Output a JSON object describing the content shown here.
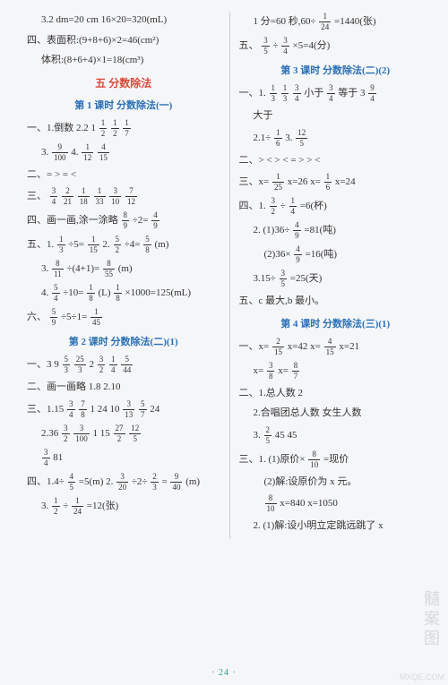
{
  "leftCol": {
    "top1": "3.2 dm=20 cm  16×20=320(mL)",
    "top2": "四、表面积:(9+8+6)×2=46(cm²)",
    "top3": "体积:(8+6+4)×1=18(cm³)",
    "headingRed": "五  分数除法",
    "headingBlue1": "第 1 课时  分数除法(一)",
    "l1a": "一、1.倒数  2.2  1  ",
    "l1b_f1n": "1",
    "l1b_f1d": "2",
    "l1b_f2n": "1",
    "l1b_f2d": "2",
    "l1b_f3n": "1",
    "l1b_f3d": "7",
    "l3a": "3.",
    "l3a_f1n": "9",
    "l3a_f1d": "100",
    "l3b": "  4.",
    "l3b_f1n": "1",
    "l3b_f1d": "12",
    "l3b_f2n": "4",
    "l3b_f2d": "15",
    "l4": "二、=  >  =  <",
    "l5a": "三、",
    "l5_f1n": "3",
    "l5_f1d": "4",
    "l5_f2n": "2",
    "l5_f2d": "21",
    "l5_f3n": "1",
    "l5_f3d": "18",
    "l5_f4n": "1",
    "l5_f4d": "33",
    "l5_f5n": "3",
    "l5_f5d": "10",
    "l5_f6n": "7",
    "l5_f6d": "12",
    "l6a": "四、画一画,涂一涂略  ",
    "l6_f1n": "8",
    "l6_f1d": "9",
    "l6_mid": "÷2=",
    "l6_f2n": "4",
    "l6_f2d": "9",
    "l7a": "五、1.",
    "l7_f1n": "1",
    "l7_f1d": "3",
    "l7_mid": "÷5=",
    "l7_f2n": "1",
    "l7_f2d": "15",
    "l7b": "  2.",
    "l7_f3n": "5",
    "l7_f3d": "2",
    "l7_mid2": "÷4=",
    "l7_f4n": "5",
    "l7_f4d": "8",
    "l7_end": "(m)",
    "l8a": "3.",
    "l8_f1n": "8",
    "l8_f1d": "11",
    "l8_mid": "÷(4+1)=",
    "l8_f2n": "8",
    "l8_f2d": "55",
    "l8_end": "(m)",
    "l9a": "4.",
    "l9_f1n": "5",
    "l9_f1d": "4",
    "l9_m1": "÷10=",
    "l9_f2n": "1",
    "l9_f2d": "8",
    "l9_m2": "(L)  ",
    "l9_f3n": "1",
    "l9_f3d": "8",
    "l9_m3": "×1000=125(mL)",
    "l10a": "六、",
    "l10_f1n": "5",
    "l10_f1d": "9",
    "l10_m": "÷5÷1=",
    "l10_f2n": "1",
    "l10_f2d": "45",
    "headingBlue2": "第 2 课时  分数除法(二)(1)",
    "l11a": "一、3  9  ",
    "l11_f1n": "5",
    "l11_f1d": "3",
    "l11_f2n": "25",
    "l11_f2d": "3",
    "l11_m": "  2  ",
    "l11_f3n": "3",
    "l11_f3d": "2",
    "l11_f4n": "1",
    "l11_f4d": "4",
    "l11_f5n": "5",
    "l11_f5d": "44",
    "l12": "二、画一画略  1.8  2.10",
    "l13a": "三、1.15  ",
    "l13_f1n": "3",
    "l13_f1d": "4",
    "l13_f2n": "7",
    "l13_f2d": "8",
    "l13_m": "  1  24  10  ",
    "l13_f3n": "3",
    "l13_f3d": "13",
    "l13_f4n": "5",
    "l13_f4d": "7",
    "l13_end": "  24",
    "l14a": "2.36  ",
    "l14_f1n": "3",
    "l14_f1d": "2",
    "l14_f2n": "3",
    "l14_f2d": "100",
    "l14_m": "  1  15  ",
    "l14_f3n": "27",
    "l14_f3d": "2",
    "l14_f4n": "12",
    "l14_f4d": "5",
    "l15_f1n": "3",
    "l15_f1d": "4",
    "l15_m": "  81",
    "l16a": "四、1.4÷",
    "l16_f1n": "4",
    "l16_f1d": "5",
    "l16_m": "=5(m)  2.",
    "l16_f2n": "3",
    "l16_f2d": "20",
    "l16_m2": "÷2÷",
    "l16_f3n": "2",
    "l16_f3d": "3",
    "l16_m3": "=",
    "l16_f4n": "9",
    "l16_f4d": "40",
    "l16_end": "(m)",
    "l17a": "3.",
    "l17_f1n": "1",
    "l17_f1d": "2",
    "l17_m": "÷",
    "l17_f2n": "1",
    "l17_f2d": "24",
    "l17_end": "=12(张)"
  },
  "rightCol": {
    "r1a": "1 分=60 秒,60÷",
    "r1_f1n": "1",
    "r1_f1d": "24",
    "r1_end": "=1440(张)",
    "r2a": "五、",
    "r2_f1n": "3",
    "r2_f1d": "5",
    "r2_m": "÷",
    "r2_f2n": "3",
    "r2_f2d": "4",
    "r2_m2": "×5=4(分)",
    "hb1": "第 3 课时  分数除法(二)(2)",
    "r3a": "一、1.",
    "r3_f1n": "1",
    "r3_f1d": "3",
    "r3_f2n": "1",
    "r3_f2d": "3",
    "r3_f3n": "3",
    "r3_f3d": "4",
    "r3_m": "  小于  ",
    "r3_f4n": "3",
    "r3_f4d": "4",
    "r3_m2": "  等于  3  ",
    "r3_f5n": "9",
    "r3_f5d": "4",
    "r3b": "大于",
    "r4a": "2.1÷",
    "r4_f1n": "1",
    "r4_f1d": "6",
    "r4_m": "  3.",
    "r4_f2n": "12",
    "r4_f2d": "5",
    "r5": "二、>  <  >  <  =  >  >  <",
    "r6a": "三、x=",
    "r6_f1n": "1",
    "r6_f1d": "25",
    "r6_m": "  x=26  x=",
    "r6_f2n": "1",
    "r6_f2d": "6",
    "r6_end": "  x=24",
    "r7a": "四、1.",
    "r7_f1n": "3",
    "r7_f1d": "2",
    "r7_m": "÷",
    "r7_f2n": "1",
    "r7_f2d": "4",
    "r7_end": "=6(杯)",
    "r8a": "2. (1)36÷",
    "r8_f1n": "4",
    "r8_f1d": "9",
    "r8_end": "=81(吨)",
    "r9a": "(2)36×",
    "r9_f1n": "4",
    "r9_f1d": "9",
    "r9_end": "=16(吨)",
    "r10a": "3.15÷",
    "r10_f1n": "3",
    "r10_f1d": "5",
    "r10_end": "=25(天)",
    "r11": "五、c 最大,b 最小。",
    "hb2": "第 4 课时  分数除法(三)(1)",
    "r12a": "一、x=",
    "r12_f1n": "2",
    "r12_f1d": "15",
    "r12_m": "  x=42  x=",
    "r12_f2n": "4",
    "r12_f2d": "15",
    "r12_end": "  x=21",
    "r13a": "x=",
    "r13_f1n": "3",
    "r13_f1d": "8",
    "r13_m": "  x=",
    "r13_f2n": "8",
    "r13_f2d": "7",
    "r14": "二、1.总人数  2",
    "r15": "2.合唱团总人数  女生人数",
    "r16a": "3.",
    "r16_f1n": "2",
    "r16_f1d": "5",
    "r16_m": "  45  45",
    "r17a": "三、1. (1)原价×",
    "r17_f1n": "8",
    "r17_f1d": "10",
    "r17_end": "=现价",
    "r18": "(2)解:设原价为 x 元。",
    "r19_f1n": "8",
    "r19_f1d": "10",
    "r19a": "x=840    x=1050",
    "r20": "2. (1)解:设小明立定跳远跳了 x"
  },
  "pageNum": "· 24 ·",
  "watermark": "髓案图",
  "wm2": "MXQE.COM"
}
